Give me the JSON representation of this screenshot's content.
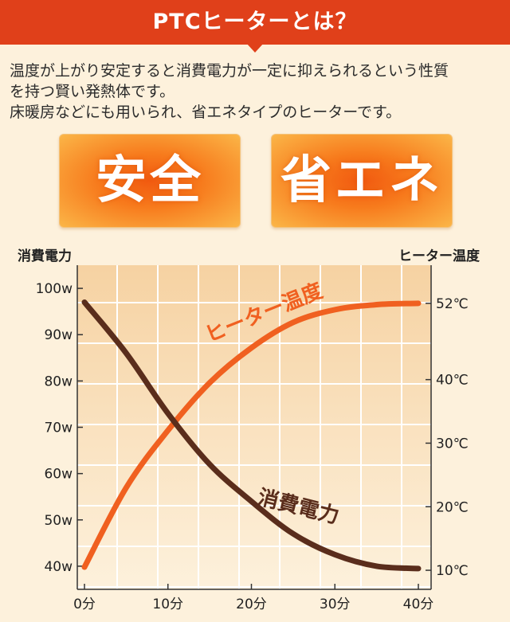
{
  "header": {
    "title": "PTCヒーターとは？"
  },
  "description": {
    "lines": [
      "温度が上がり安定すると消費電力が一定に抑えられるという性質",
      "を持つ賢い発熱体です。",
      "床暖房などにも用いられ、省エネタイプのヒーターです。"
    ]
  },
  "badges": [
    {
      "label": "安全"
    },
    {
      "label": "省エネ"
    }
  ],
  "colors": {
    "banner": "#e0401a",
    "heater_curve": "#f06020",
    "power_curve": "#5a2d1c"
  },
  "chart_data": {
    "type": "line",
    "title": "",
    "xlabel": "",
    "ylabel_left": "消費電力",
    "ylabel_right": "ヒーター温度",
    "x_categories": [
      "0分",
      "10分",
      "20分",
      "30分",
      "40分"
    ],
    "y_left_ticks": [
      "100w",
      "90w",
      "80w",
      "70w",
      "60w",
      "50w",
      "40w"
    ],
    "y_left_range": [
      35,
      105
    ],
    "y_right_ticks": [
      "52℃",
      "40℃",
      "30℃",
      "20℃",
      "10℃"
    ],
    "y_right_range": [
      7,
      58
    ],
    "grid": true,
    "series": [
      {
        "name": "ヒーター温度",
        "axis": "right",
        "x": [
          0,
          5,
          10,
          15,
          20,
          25,
          30,
          35,
          40
        ],
        "y": [
          10.5,
          23,
          32,
          39.5,
          45,
          49,
          51,
          51.8,
          52
        ]
      },
      {
        "name": "消費電力",
        "axis": "left",
        "x": [
          0,
          5,
          10,
          15,
          20,
          25,
          30,
          35,
          40
        ],
        "y": [
          97,
          86,
          73,
          62,
          54,
          47,
          42.5,
          40,
          39.5
        ]
      }
    ]
  }
}
